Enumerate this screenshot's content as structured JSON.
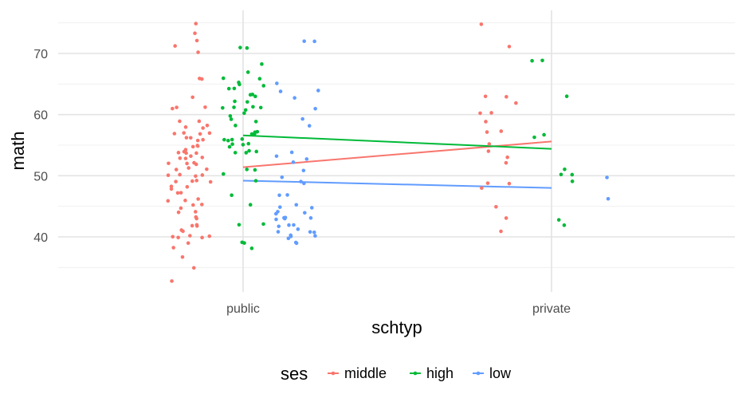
{
  "chart_data": {
    "type": "scatter",
    "xlabel": "schtyp",
    "ylabel": "math",
    "categories": [
      "public",
      "private"
    ],
    "ylim": [
      31,
      77
    ],
    "yticks": [
      40,
      50,
      60,
      70
    ],
    "grid": true,
    "legend": {
      "title": "ses",
      "position": "bottom"
    },
    "series": [
      {
        "name": "middle",
        "color": "#F8766D",
        "fit": [
          51.4,
          55.6
        ],
        "points": [
          {
            "x": "public",
            "y": [
              75,
              73,
              72,
              71,
              70,
              66,
              66,
              63,
              61,
              61,
              61,
              59,
              59,
              58,
              58,
              58,
              57,
              57,
              57,
              57,
              56,
              56,
              56,
              56,
              55,
              55,
              55,
              54,
              54,
              54,
              54,
              54,
              53,
              53,
              53,
              53,
              52,
              52,
              52,
              52,
              51,
              51,
              51,
              50,
              50,
              50,
              50,
              49,
              49,
              49,
              49,
              48,
              48,
              48,
              47,
              47,
              46,
              46,
              46,
              45,
              45,
              45,
              44,
              44,
              43,
              43,
              42,
              42,
              42,
              41,
              41,
              40,
              40,
              40,
              40,
              40,
              39,
              38,
              37,
              35,
              33
            ]
          },
          {
            "x": "private",
            "y": [
              75,
              71,
              63,
              63,
              62,
              60,
              60,
              59,
              57,
              57,
              55,
              54,
              53,
              52,
              49,
              49,
              48,
              45,
              43,
              41
            ]
          }
        ]
      },
      {
        "name": "high",
        "color": "#00BA38",
        "fit": [
          56.6,
          54.4
        ],
        "points": [
          {
            "x": "public",
            "y": [
              71,
              71,
              68,
              67,
              66,
              66,
              65,
              65,
              65,
              64,
              64,
              63,
              63,
              63,
              62,
              62,
              61,
              61,
              61,
              61,
              61,
              60,
              60,
              59,
              59,
              58,
              57,
              57,
              57,
              57,
              56,
              56,
              56,
              56,
              55,
              55,
              55,
              55,
              54,
              54,
              54,
              54,
              51,
              51,
              50,
              49,
              47,
              45,
              42,
              42,
              39,
              39,
              38
            ]
          },
          {
            "x": "private",
            "y": [
              69,
              69,
              63,
              57,
              56,
              51,
              50,
              50,
              49,
              43,
              42
            ]
          }
        ]
      },
      {
        "name": "low",
        "color": "#619CFF",
        "fit": [
          49.2,
          48.0
        ],
        "points": [
          {
            "x": "public",
            "y": [
              72,
              72,
              65,
              64,
              64,
              63,
              61,
              59,
              58,
              54,
              53,
              53,
              52,
              51,
              50,
              49,
              49,
              47,
              47,
              45,
              45,
              45,
              44,
              44,
              44,
              43,
              43,
              43,
              43,
              43,
              42,
              42,
              42,
              41,
              41,
              41,
              41,
              40,
              40,
              40,
              40,
              39,
              39
            ]
          },
          {
            "x": "private",
            "y": [
              50,
              46
            ]
          }
        ]
      }
    ]
  }
}
